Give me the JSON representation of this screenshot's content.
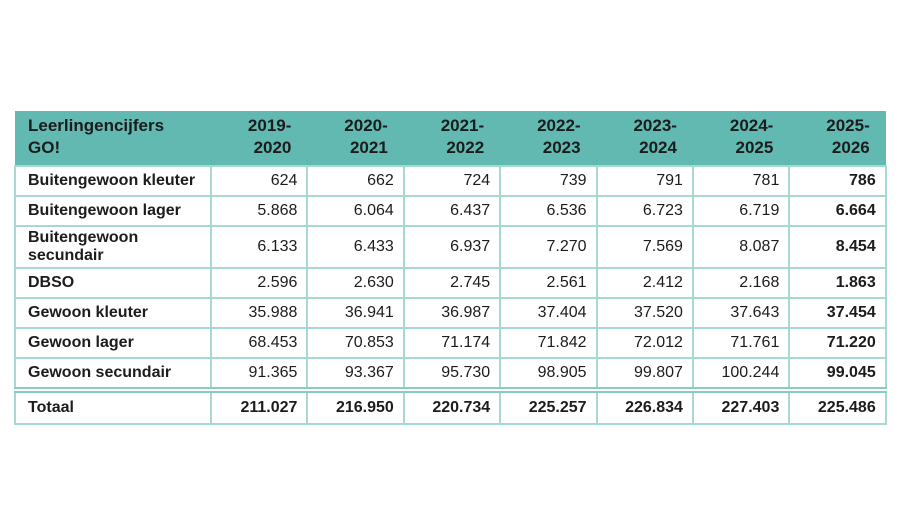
{
  "colors": {
    "canvas_bg": "#ffffff",
    "header_bg": "#61b9b1",
    "grid_border": "#a8d8d4",
    "total_double_border": "#8ccac6",
    "text": "#1c1c1c"
  },
  "chart_data": {
    "type": "table",
    "title": "Leerlingencijfers GO!",
    "title_lines": [
      "Leerlingencijfers",
      "GO!"
    ],
    "columns": [
      "2019-2020",
      "2020-2021",
      "2021-2022",
      "2022-2023",
      "2023-2024",
      "2024-2025",
      "2025-2026"
    ],
    "rows": [
      {
        "label": "Buitengewoon kleuter",
        "values": [
          "624",
          "662",
          "724",
          "739",
          "791",
          "781",
          "786"
        ]
      },
      {
        "label": "Buitengewoon lager",
        "values": [
          "5.868",
          "6.064",
          "6.437",
          "6.536",
          "6.723",
          "6.719",
          "6.664"
        ]
      },
      {
        "label": "Buitengewoon secundair",
        "values": [
          "6.133",
          "6.433",
          "6.937",
          "7.270",
          "7.569",
          "8.087",
          "8.454"
        ]
      },
      {
        "label": "DBSO",
        "values": [
          "2.596",
          "2.630",
          "2.745",
          "2.561",
          "2.412",
          "2.168",
          "1.863"
        ]
      },
      {
        "label": "Gewoon kleuter",
        "values": [
          "35.988",
          "36.941",
          "36.987",
          "37.404",
          "37.520",
          "37.643",
          "37.454"
        ]
      },
      {
        "label": "Gewoon lager",
        "values": [
          "68.453",
          "70.853",
          "71.174",
          "71.842",
          "72.012",
          "71.761",
          "71.220"
        ]
      },
      {
        "label": "Gewoon secundair",
        "values": [
          "91.365",
          "93.367",
          "95.730",
          "98.905",
          "99.807",
          "100.244",
          "99.045"
        ]
      }
    ],
    "total_row": {
      "label": "Totaal",
      "values": [
        "211.027",
        "216.950",
        "220.734",
        "225.257",
        "226.834",
        "227.403",
        "225.486"
      ]
    },
    "layout_hints": {
      "last_column_bold": true,
      "total_row_bold": true,
      "number_format": "dutch-thousands-dot",
      "header_text_split": "year ranges wrap after hyphen onto two lines"
    }
  }
}
